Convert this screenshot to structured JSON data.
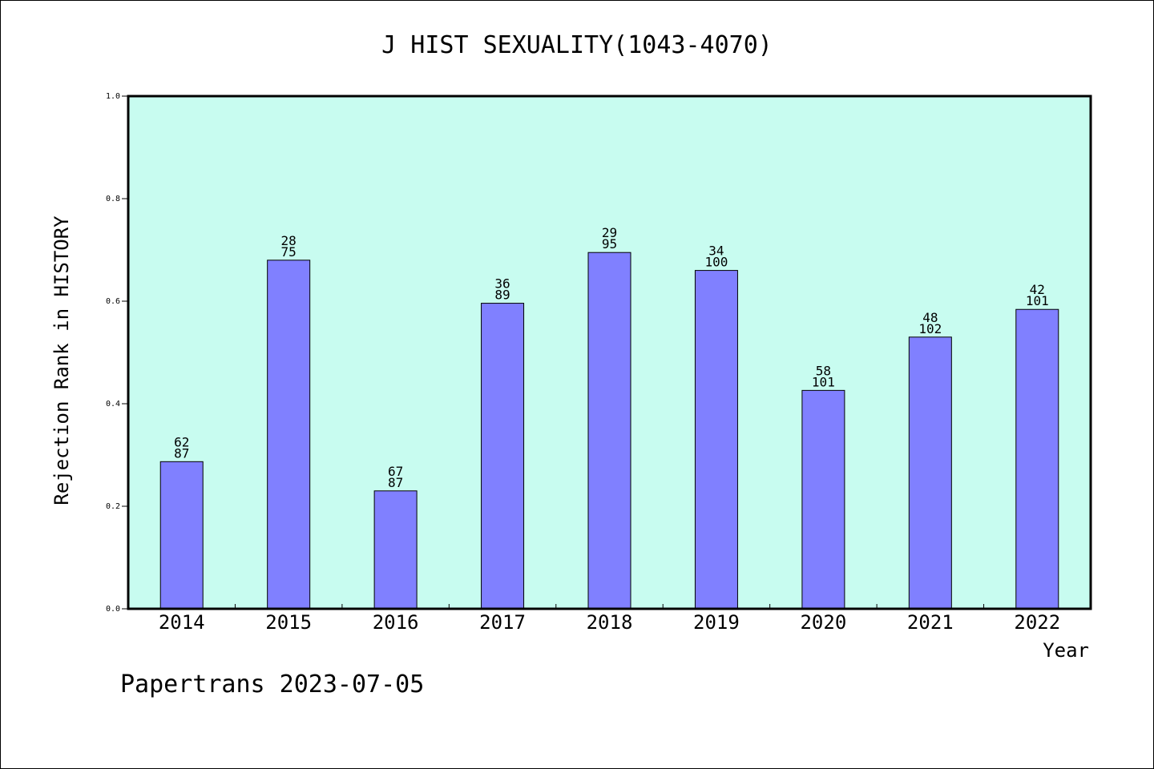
{
  "chart_data": {
    "type": "bar",
    "title": "J HIST SEXUALITY(1043-4070)",
    "xlabel": "Year",
    "ylabel": "Rejection Rank in HISTORY",
    "categories": [
      "2014",
      "2015",
      "2016",
      "2017",
      "2018",
      "2019",
      "2020",
      "2021",
      "2022"
    ],
    "values": [
      0.287,
      0.68,
      0.23,
      0.596,
      0.695,
      0.66,
      0.426,
      0.53,
      0.584
    ],
    "labels_top": [
      "62",
      "28",
      "67",
      "36",
      "29",
      "34",
      "58",
      "48",
      "42"
    ],
    "labels_bottom": [
      "87",
      "75",
      "87",
      "89",
      "95",
      "100",
      "101",
      "102",
      "101"
    ],
    "ylim": [
      0,
      1.0
    ],
    "yticks": [
      "0.0",
      "0.2",
      "0.4",
      "0.6",
      "0.8",
      "1.0"
    ],
    "ytick_values": [
      0,
      0.2,
      0.4,
      0.6,
      0.8,
      1.0
    ],
    "grid": false,
    "colors": {
      "bar": "#8080ff",
      "plot_background": "#c8fcf0",
      "axis": "#000000"
    }
  },
  "footer": "Papertrans 2023-07-05"
}
